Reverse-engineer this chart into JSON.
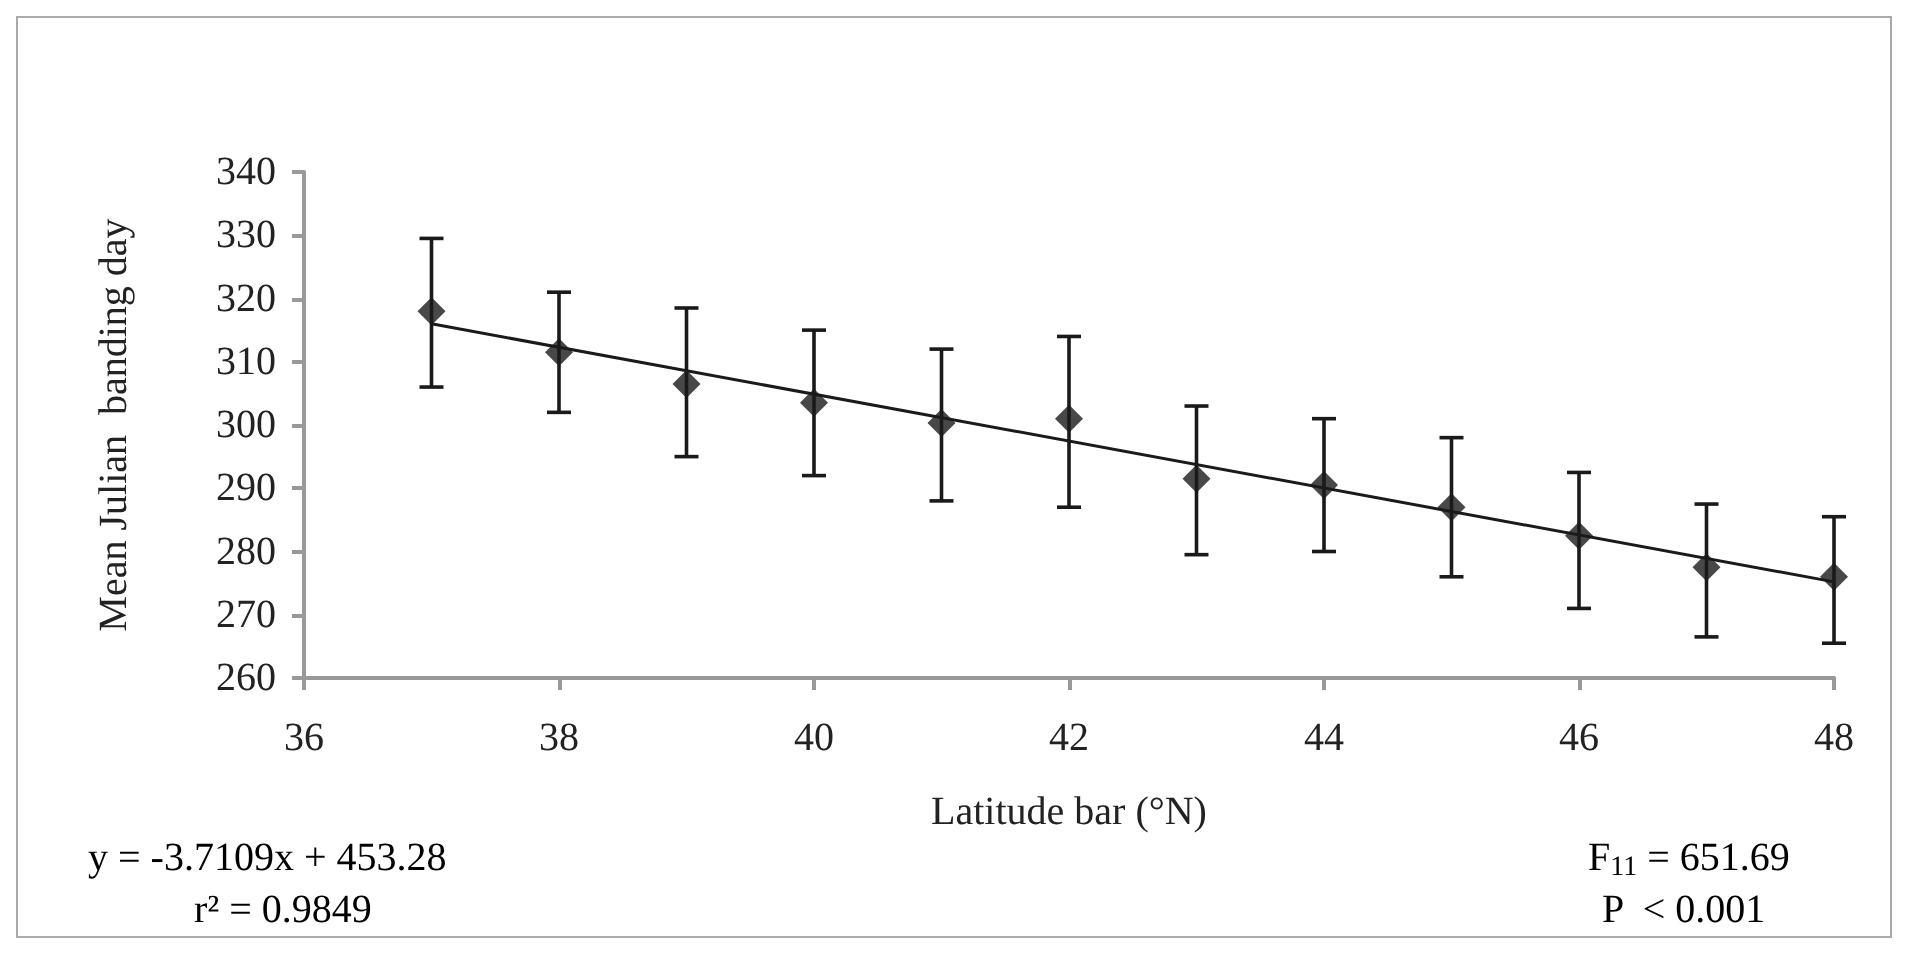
{
  "chart_data": {
    "type": "scatter",
    "xlabel": "Latitude bar (°N)",
    "ylabel": "Mean Julian  banding day",
    "x": [
      37,
      38,
      39,
      40,
      41,
      42,
      43,
      44,
      45,
      46,
      47,
      48
    ],
    "series": [
      {
        "color": "#1a1a1a",
        "marker": "diamond",
        "values": [
          318,
          311.5,
          306.5,
          303.5,
          300.3,
          301,
          291.5,
          290.5,
          287,
          282.5,
          277.5,
          276
        ],
        "errors": [
          [
            306,
            329.5
          ],
          [
            302,
            321
          ],
          [
            295,
            318.5
          ],
          [
            292,
            315
          ],
          [
            288,
            312
          ],
          [
            287,
            314
          ],
          [
            279.5,
            303
          ],
          [
            280,
            301
          ],
          [
            276,
            298
          ],
          [
            271,
            292.5
          ],
          [
            266.5,
            287.5
          ],
          [
            265.5,
            285.5
          ]
        ]
      },
      {
        "type": "line",
        "color": "#1a1a1a",
        "marker": "none",
        "x": [
          37,
          48
        ],
        "values": [
          316.0,
          275.2
        ]
      }
    ],
    "xlim": [
      36,
      48
    ],
    "xticks": [
      36,
      38,
      40,
      42,
      44,
      46,
      48
    ],
    "ylim": [
      260,
      340
    ],
    "yticks": [
      260,
      270,
      280,
      290,
      300,
      310,
      320,
      330,
      340
    ],
    "grid": false,
    "annotations": [
      "y = -3.7109x + 453.28",
      "r² = 0.9849",
      "F$_{11}$ = 651.69",
      "P  < 0.001"
    ]
  }
}
